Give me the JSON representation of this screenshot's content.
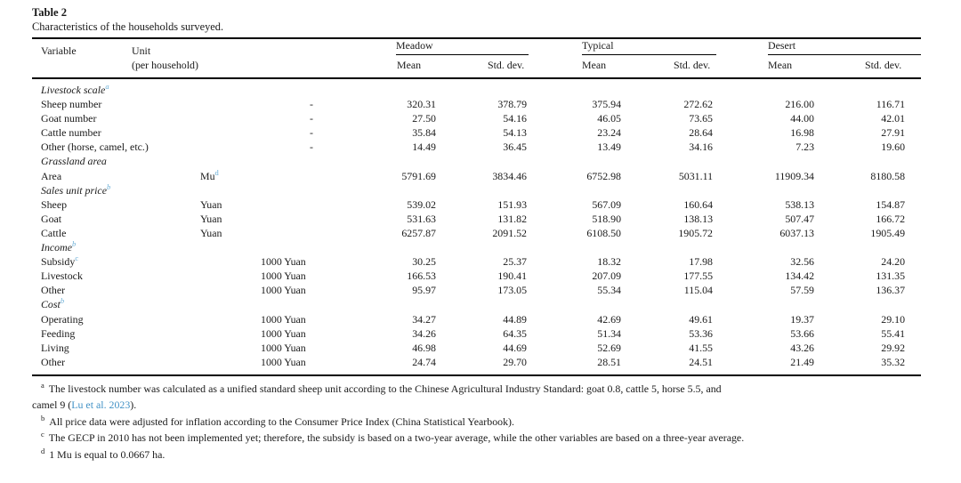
{
  "table2": {
    "label": "Table 2",
    "caption": "Characteristics of the households surveyed.",
    "head": {
      "variable": "Variable",
      "unit": [
        "Unit",
        "(per household)"
      ],
      "groups": [
        {
          "label": "Meadow",
          "mean": "Mean",
          "std": "Std. dev."
        },
        {
          "label": "Typical",
          "mean": "Mean",
          "std": "Std. dev."
        },
        {
          "label": "Desert",
          "mean": "Mean",
          "std": "Std. dev."
        }
      ]
    },
    "rows": [
      {
        "type": "section",
        "label": "Livestock scale",
        "sup": "a"
      },
      {
        "type": "data",
        "label": "Sheep number",
        "unit": "-",
        "unit_pos": "dash",
        "values": [
          "320.31",
          "378.79",
          "375.94",
          "272.62",
          "216.00",
          "116.71"
        ]
      },
      {
        "type": "data",
        "label": "Goat number",
        "unit": "-",
        "unit_pos": "dash",
        "values": [
          "27.50",
          "54.16",
          "46.05",
          "73.65",
          "44.00",
          "42.01"
        ]
      },
      {
        "type": "data",
        "label": "Cattle number",
        "unit": "-",
        "unit_pos": "dash",
        "values": [
          "35.84",
          "54.13",
          "23.24",
          "28.64",
          "16.98",
          "27.91"
        ]
      },
      {
        "type": "data",
        "label": "Other (horse, camel, etc.)",
        "unit": "-",
        "unit_pos": "dash",
        "values": [
          "14.49",
          "36.45",
          "13.49",
          "34.16",
          "7.23",
          "19.60"
        ]
      },
      {
        "type": "section",
        "label": "Grassland area"
      },
      {
        "type": "data",
        "label": "Area",
        "unit": "Mu",
        "unit_sup": "d",
        "unit_pos": "near",
        "values": [
          "5791.69",
          "3834.46",
          "6752.98",
          "5031.11",
          "11909.34",
          "8180.58"
        ]
      },
      {
        "type": "section",
        "label": "Sales unit price",
        "sup": "b"
      },
      {
        "type": "data",
        "label": "Sheep",
        "unit": "Yuan",
        "unit_pos": "near",
        "values": [
          "539.02",
          "151.93",
          "567.09",
          "160.64",
          "538.13",
          "154.87"
        ]
      },
      {
        "type": "data",
        "label": "Goat",
        "unit": "Yuan",
        "unit_pos": "near",
        "values": [
          "531.63",
          "131.82",
          "518.90",
          "138.13",
          "507.47",
          "166.72"
        ]
      },
      {
        "type": "data",
        "label": "Cattle",
        "unit": "Yuan",
        "unit_pos": "near",
        "values": [
          "6257.87",
          "2091.52",
          "6108.50",
          "1905.72",
          "6037.13",
          "1905.49"
        ]
      },
      {
        "type": "section",
        "label": "Income",
        "sup": "b"
      },
      {
        "type": "data",
        "label": "Subsidy",
        "sup": "c",
        "unit": "1000 Yuan",
        "unit_pos": "mid",
        "values": [
          "30.25",
          "25.37",
          "18.32",
          "17.98",
          "32.56",
          "24.20"
        ]
      },
      {
        "type": "data",
        "label": "Livestock",
        "unit": "1000 Yuan",
        "unit_pos": "mid",
        "values": [
          "166.53",
          "190.41",
          "207.09",
          "177.55",
          "134.42",
          "131.35"
        ]
      },
      {
        "type": "data",
        "label": "Other",
        "unit": "1000 Yuan",
        "unit_pos": "mid",
        "values": [
          "95.97",
          "173.05",
          "55.34",
          "115.04",
          "57.59",
          "136.37"
        ]
      },
      {
        "type": "section",
        "label": "Cost",
        "sup": "b"
      },
      {
        "type": "data",
        "label": "Operating",
        "unit": "1000 Yuan",
        "unit_pos": "mid",
        "values": [
          "34.27",
          "44.89",
          "42.69",
          "49.61",
          "19.37",
          "29.10"
        ]
      },
      {
        "type": "data",
        "label": "Feeding",
        "unit": "1000 Yuan",
        "unit_pos": "mid",
        "values": [
          "34.26",
          "64.35",
          "51.34",
          "53.36",
          "53.66",
          "55.41"
        ]
      },
      {
        "type": "data",
        "label": "Living",
        "unit": "1000 Yuan",
        "unit_pos": "mid",
        "values": [
          "46.98",
          "44.69",
          "52.69",
          "41.55",
          "43.26",
          "29.92"
        ]
      },
      {
        "type": "data",
        "label": "Other",
        "unit": "1000 Yuan",
        "unit_pos": "mid",
        "values": [
          "24.74",
          "29.70",
          "28.51",
          "24.51",
          "21.49",
          "35.32"
        ]
      }
    ],
    "footnotes": [
      {
        "marker": "a",
        "before": "The livestock number was calculated as a unified standard sheep unit according to the Chinese Agricultural Industry Standard: goat 0.8, cattle 5, horse 5.5, and\ncamel 9 (",
        "link": "Lu et al. 2023",
        "after": ")."
      },
      {
        "marker": "b",
        "before": "All price data were adjusted for inflation according to the Consumer Price Index (China Statistical Yearbook)."
      },
      {
        "marker": "c",
        "before": "The GECP in 2010 has not been implemented yet; therefore, the subsidy is based on a two-year average, while the other variables are based on a three-year average."
      },
      {
        "marker": "d",
        "before": "1 Mu is equal to 0.0667 ha."
      }
    ],
    "colors": {
      "xref_sup": "#6aaed6",
      "citation_link": "#4292c6"
    }
  }
}
